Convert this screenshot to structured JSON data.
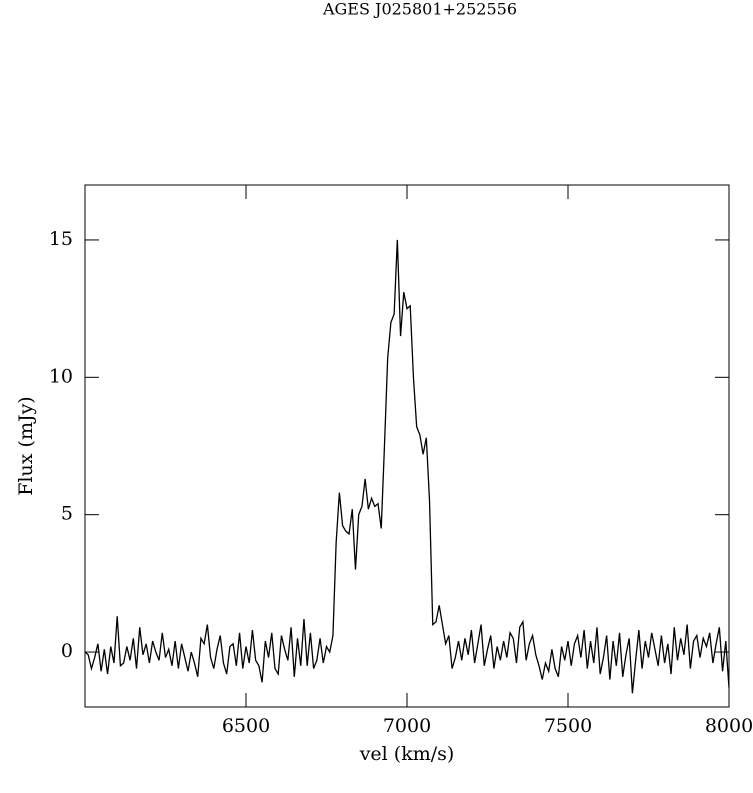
{
  "chart_data": {
    "type": "line",
    "title": "AGES J025801+252556",
    "x_label": "vel (km/s)",
    "y_label": "Flux (mJy)",
    "xlim": [
      6000,
      8000
    ],
    "xticks": [
      6500,
      7000,
      7500,
      8000
    ],
    "ylim": [
      -2,
      17
    ],
    "yticks": [
      0,
      5,
      10,
      15
    ],
    "color": "#000000",
    "x": [
      6000,
      6010,
      6020,
      6030,
      6040,
      6050,
      6060,
      6070,
      6080,
      6090,
      6100,
      6110,
      6120,
      6130,
      6140,
      6150,
      6160,
      6170,
      6180,
      6190,
      6200,
      6210,
      6220,
      6230,
      6240,
      6250,
      6260,
      6270,
      6280,
      6290,
      6300,
      6310,
      6320,
      6330,
      6340,
      6350,
      6360,
      6370,
      6380,
      6390,
      6400,
      6410,
      6420,
      6430,
      6440,
      6450,
      6460,
      6470,
      6480,
      6490,
      6500,
      6510,
      6520,
      6530,
      6540,
      6550,
      6560,
      6570,
      6580,
      6590,
      6600,
      6610,
      6620,
      6630,
      6640,
      6650,
      6660,
      6670,
      6680,
      6690,
      6700,
      6710,
      6720,
      6730,
      6740,
      6750,
      6760,
      6770,
      6780,
      6790,
      6800,
      6810,
      6820,
      6830,
      6840,
      6850,
      6860,
      6870,
      6880,
      6890,
      6900,
      6910,
      6920,
      6930,
      6940,
      6950,
      6960,
      6970,
      6980,
      6990,
      7000,
      7010,
      7020,
      7030,
      7040,
      7050,
      7060,
      7070,
      7080,
      7090,
      7100,
      7110,
      7120,
      7130,
      7140,
      7150,
      7160,
      7170,
      7180,
      7190,
      7200,
      7210,
      7220,
      7230,
      7240,
      7250,
      7260,
      7270,
      7280,
      7290,
      7300,
      7310,
      7320,
      7330,
      7340,
      7350,
      7360,
      7370,
      7380,
      7390,
      7400,
      7410,
      7420,
      7430,
      7440,
      7450,
      7460,
      7470,
      7480,
      7490,
      7500,
      7510,
      7520,
      7530,
      7540,
      7550,
      7560,
      7570,
      7580,
      7590,
      7600,
      7610,
      7620,
      7630,
      7640,
      7650,
      7660,
      7670,
      7680,
      7690,
      7700,
      7710,
      7720,
      7730,
      7740,
      7750,
      7760,
      7770,
      7780,
      7790,
      7800,
      7810,
      7820,
      7830,
      7840,
      7850,
      7860,
      7870,
      7880,
      7890,
      7900,
      7910,
      7920,
      7930,
      7940,
      7950,
      7960,
      7970,
      7980,
      7990,
      8000
    ],
    "values": [
      0.0,
      -0.1,
      -0.6,
      -0.2,
      0.3,
      -0.7,
      0.1,
      -0.8,
      0.2,
      -0.4,
      1.3,
      -0.5,
      -0.4,
      0.2,
      -0.3,
      0.5,
      -0.6,
      0.9,
      -0.1,
      0.3,
      -0.4,
      0.4,
      0.0,
      -0.3,
      0.7,
      -0.2,
      0.1,
      -0.5,
      0.4,
      -0.6,
      0.3,
      -0.2,
      -0.7,
      0.0,
      -0.4,
      -0.9,
      0.5,
      0.3,
      1.0,
      -0.2,
      -0.6,
      0.1,
      0.6,
      -0.4,
      -0.8,
      0.2,
      0.3,
      -0.5,
      0.7,
      -0.6,
      0.2,
      -0.4,
      0.8,
      -0.3,
      -0.5,
      -1.1,
      0.4,
      -0.2,
      0.7,
      -0.6,
      -0.8,
      0.6,
      0.1,
      -0.3,
      0.9,
      -0.9,
      0.5,
      -0.5,
      1.2,
      -0.5,
      0.7,
      -0.6,
      -0.3,
      0.5,
      -0.4,
      0.2,
      0.0,
      0.6,
      4.0,
      5.8,
      4.6,
      4.4,
      4.3,
      5.2,
      3.0,
      5.0,
      5.3,
      6.3,
      5.2,
      5.6,
      5.3,
      5.4,
      4.5,
      7.5,
      10.7,
      12.0,
      12.3,
      15.0,
      11.5,
      13.1,
      12.5,
      12.6,
      10.0,
      8.2,
      7.9,
      7.2,
      7.8,
      5.5,
      1.0,
      1.1,
      1.7,
      1.0,
      0.3,
      0.6,
      -0.6,
      -0.2,
      0.4,
      -0.3,
      0.5,
      -0.1,
      0.8,
      -0.4,
      0.3,
      1.0,
      -0.5,
      0.1,
      0.6,
      -0.6,
      0.2,
      -0.3,
      0.4,
      -0.2,
      0.7,
      0.5,
      -0.4,
      0.9,
      1.1,
      -0.3,
      0.3,
      0.6,
      -0.1,
      -0.5,
      -1.0,
      -0.4,
      -0.7,
      0.1,
      -0.6,
      -0.9,
      0.2,
      -0.3,
      0.4,
      -0.5,
      0.3,
      0.6,
      -0.2,
      0.8,
      -0.6,
      0.4,
      -0.4,
      0.9,
      -0.8,
      -0.2,
      0.6,
      -1.0,
      0.4,
      -0.5,
      0.7,
      -0.9,
      -0.1,
      0.5,
      -1.5,
      -0.3,
      0.8,
      -0.6,
      0.4,
      -0.2,
      0.7,
      0.1,
      -0.5,
      0.6,
      -0.4,
      0.3,
      -0.8,
      0.9,
      -0.3,
      0.5,
      -0.1,
      1.0,
      -0.6,
      0.4,
      0.6,
      -0.2,
      0.5,
      0.2,
      0.7,
      -0.4,
      0.3,
      0.9,
      -0.7,
      0.4,
      -1.3
    ]
  }
}
